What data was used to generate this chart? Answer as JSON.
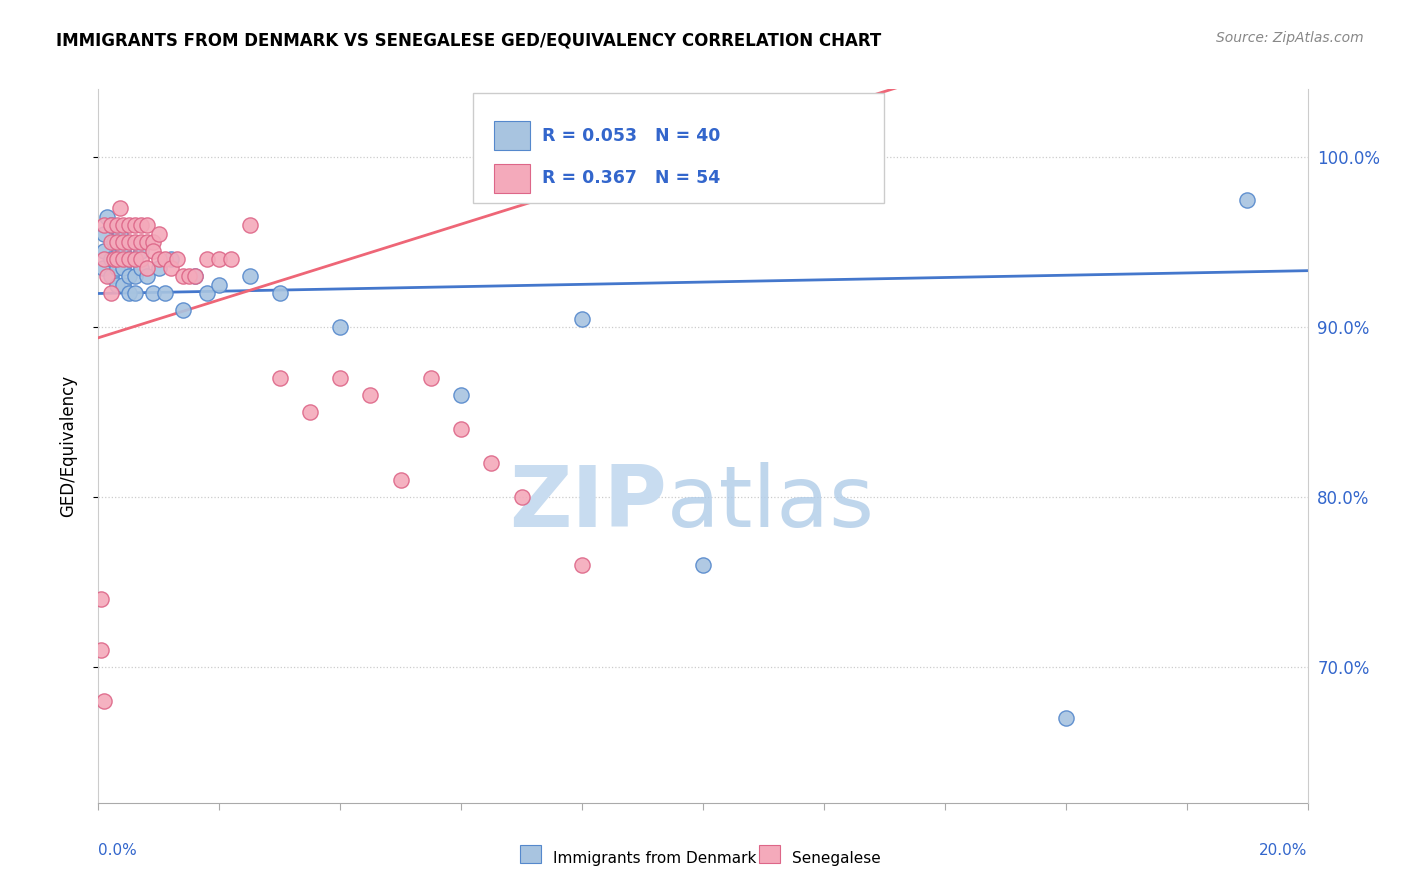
{
  "title": "IMMIGRANTS FROM DENMARK VS SENEGALESE GED/EQUIVALENCY CORRELATION CHART",
  "source": "Source: ZipAtlas.com",
  "ylabel": "GED/Equivalency",
  "xlim": [
    0.0,
    0.2
  ],
  "ylim": [
    0.62,
    1.04
  ],
  "right_yticks": [
    0.7,
    0.8,
    0.9,
    1.0
  ],
  "right_yticklabels": [
    "70.0%",
    "80.0%",
    "90.0%",
    "100.0%"
  ],
  "legend_label1": "Immigrants from Denmark",
  "legend_label2": "Senegalese",
  "blue_color": "#A8C4E0",
  "blue_edge_color": "#5588CC",
  "pink_color": "#F4AABB",
  "pink_edge_color": "#DD6688",
  "blue_line_color": "#4477CC",
  "pink_line_color": "#EE6677",
  "text_color": "#3366CC",
  "blue_dots_x": [
    0.0008,
    0.001,
    0.001,
    0.0015,
    0.002,
    0.002,
    0.002,
    0.0025,
    0.003,
    0.003,
    0.003,
    0.0035,
    0.004,
    0.004,
    0.004,
    0.005,
    0.005,
    0.005,
    0.006,
    0.006,
    0.006,
    0.007,
    0.007,
    0.008,
    0.009,
    0.01,
    0.011,
    0.012,
    0.014,
    0.016,
    0.018,
    0.02,
    0.025,
    0.03,
    0.04,
    0.06,
    0.08,
    0.1,
    0.16,
    0.19
  ],
  "blue_dots_y": [
    0.935,
    0.955,
    0.945,
    0.965,
    0.94,
    0.93,
    0.96,
    0.95,
    0.94,
    0.935,
    0.925,
    0.955,
    0.945,
    0.935,
    0.925,
    0.94,
    0.93,
    0.92,
    0.94,
    0.93,
    0.92,
    0.945,
    0.935,
    0.93,
    0.92,
    0.935,
    0.92,
    0.94,
    0.91,
    0.93,
    0.92,
    0.925,
    0.93,
    0.92,
    0.9,
    0.86,
    0.905,
    0.76,
    0.67,
    0.975
  ],
  "pink_dots_x": [
    0.0005,
    0.0005,
    0.001,
    0.001,
    0.001,
    0.0015,
    0.002,
    0.002,
    0.002,
    0.0025,
    0.003,
    0.003,
    0.003,
    0.0035,
    0.004,
    0.004,
    0.004,
    0.005,
    0.005,
    0.005,
    0.006,
    0.006,
    0.006,
    0.007,
    0.007,
    0.007,
    0.008,
    0.008,
    0.008,
    0.009,
    0.009,
    0.01,
    0.01,
    0.011,
    0.012,
    0.013,
    0.014,
    0.015,
    0.016,
    0.018,
    0.02,
    0.022,
    0.025,
    0.03,
    0.035,
    0.04,
    0.045,
    0.05,
    0.055,
    0.06,
    0.065,
    0.07,
    0.08,
    0.1
  ],
  "pink_dots_y": [
    0.74,
    0.71,
    0.96,
    0.94,
    0.68,
    0.93,
    0.96,
    0.95,
    0.92,
    0.94,
    0.96,
    0.95,
    0.94,
    0.97,
    0.96,
    0.95,
    0.94,
    0.96,
    0.95,
    0.94,
    0.96,
    0.95,
    0.94,
    0.96,
    0.95,
    0.94,
    0.96,
    0.95,
    0.935,
    0.95,
    0.945,
    0.955,
    0.94,
    0.94,
    0.935,
    0.94,
    0.93,
    0.93,
    0.93,
    0.94,
    0.94,
    0.94,
    0.96,
    0.87,
    0.85,
    0.87,
    0.86,
    0.81,
    0.87,
    0.84,
    0.82,
    0.8,
    0.76,
    1.0
  ]
}
